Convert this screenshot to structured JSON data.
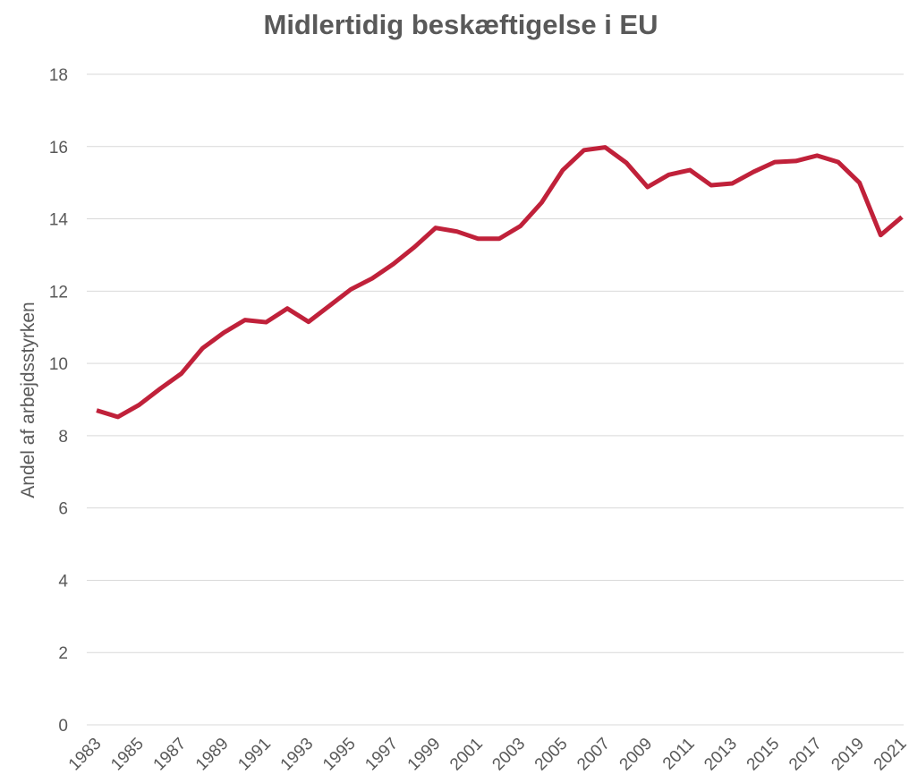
{
  "chart_data": {
    "type": "line",
    "title": "Midlertidig beskæftigelse i EU",
    "y_label": "Andel af arbejdsstyrken",
    "categories": [
      "1983",
      null,
      "1985",
      null,
      "1987",
      null,
      "1989",
      null,
      "1991",
      null,
      "1993",
      null,
      "1995",
      null,
      "1997",
      null,
      "1999",
      null,
      "2001",
      null,
      "2003",
      null,
      "2005",
      null,
      "2007",
      null,
      "2009",
      null,
      "2011",
      null,
      "2013",
      null,
      "2015",
      null,
      "2017",
      null,
      "2019",
      null,
      "2021"
    ],
    "series": [
      {
        "name": "Midlertidig beskæftigelse",
        "color": "#c0213a",
        "values": [
          8.7,
          8.52,
          8.85,
          9.3,
          9.72,
          10.42,
          10.85,
          11.2,
          11.14,
          11.52,
          11.15,
          11.6,
          12.05,
          12.35,
          12.75,
          13.22,
          13.75,
          13.65,
          13.45,
          13.45,
          13.8,
          14.45,
          15.35,
          15.9,
          15.98,
          15.55,
          14.88,
          15.22,
          15.35,
          14.93,
          14.98,
          15.3,
          15.57,
          15.6,
          15.75,
          15.57,
          15.0,
          13.55,
          14.05
        ]
      }
    ],
    "ylim": [
      0,
      18
    ],
    "yticks": [
      0,
      2,
      4,
      6,
      8,
      10,
      12,
      14,
      16,
      18
    ],
    "grid": true
  }
}
